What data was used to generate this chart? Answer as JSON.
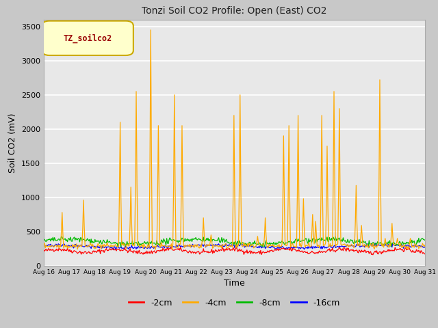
{
  "title": "Tonzi Soil CO2 Profile: Open (East) CO2",
  "xlabel": "Time",
  "ylabel": "Soil CO2 (mV)",
  "ylim": [
    0,
    3600
  ],
  "yticks": [
    0,
    500,
    1000,
    1500,
    2000,
    2500,
    3000,
    3500
  ],
  "xlim": [
    0,
    21
  ],
  "xtick_labels": [
    "Aug 16",
    "Aug 17",
    "Aug 18",
    "Aug 19",
    "Aug 20",
    "Aug 21",
    "Aug 22",
    "Aug 23",
    "Aug 24",
    "Aug 25",
    "Aug 26",
    "Aug 27",
    "Aug 28",
    "Aug 29",
    "Aug 30",
    "Aug 31"
  ],
  "legend_label": "TZ_soilco2",
  "legend_box_facecolor": "#ffffcc",
  "legend_box_edgecolor": "#ccaa00",
  "legend_label_color": "#990000",
  "series_labels": [
    "-2cm",
    "-4cm",
    "-8cm",
    "-16cm"
  ],
  "series_colors": [
    "#ff0000",
    "#ffaa00",
    "#00bb00",
    "#0000ff"
  ],
  "fig_facecolor": "#c8c8c8",
  "plot_facecolor": "#e8e8e8",
  "grid_color": "#ffffff",
  "seed": 42,
  "n_points": 500
}
